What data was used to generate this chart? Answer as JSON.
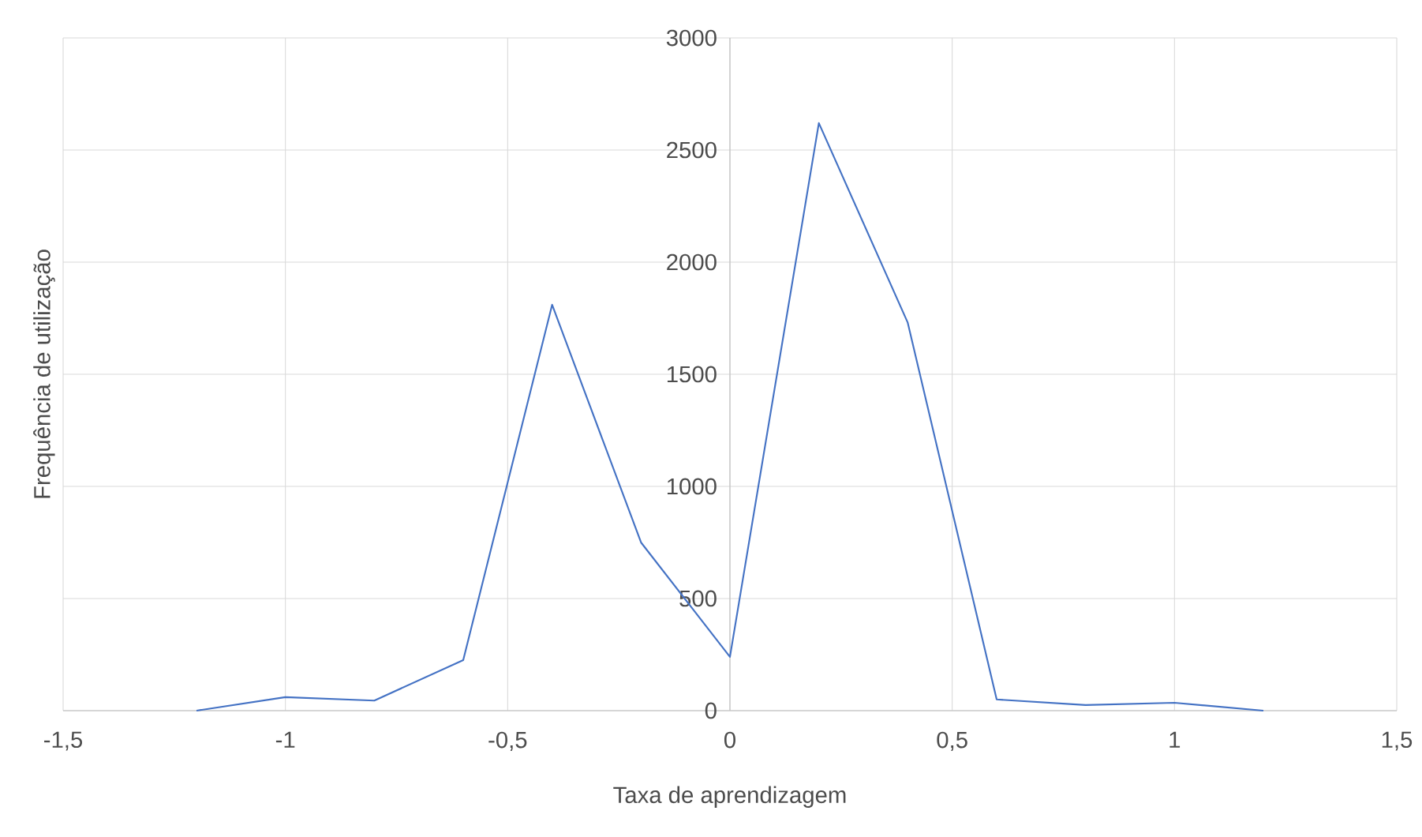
{
  "chart_data": {
    "type": "line",
    "xlabel": "Taxa de aprendizagem",
    "ylabel": "Frequência de utilização",
    "x": [
      -1.2,
      -1.0,
      -0.8,
      -0.6,
      -0.4,
      -0.2,
      0,
      0.2,
      0.4,
      0.6,
      0.8,
      1.0,
      1.2
    ],
    "series": [
      {
        "color": "#4472c4",
        "values": [
          0,
          60,
          45,
          225,
          1810,
          750,
          240,
          2620,
          1730,
          50,
          25,
          35,
          0
        ]
      }
    ],
    "xlim": [
      -1.5,
      1.5
    ],
    "xticks": [
      {
        "value": -1.5,
        "label": "-1,5"
      },
      -1,
      {
        "value": -0.5,
        "label": "-0,5"
      },
      0,
      {
        "value": 0.5,
        "label": "0,5"
      },
      1,
      {
        "value": 1.5,
        "label": "1,5"
      }
    ],
    "ylim": [
      0,
      3000
    ],
    "yticks": [
      0,
      500,
      1000,
      1500,
      2000,
      2500,
      3000
    ],
    "grid": true,
    "marker": "none",
    "line_style": "solid"
  }
}
